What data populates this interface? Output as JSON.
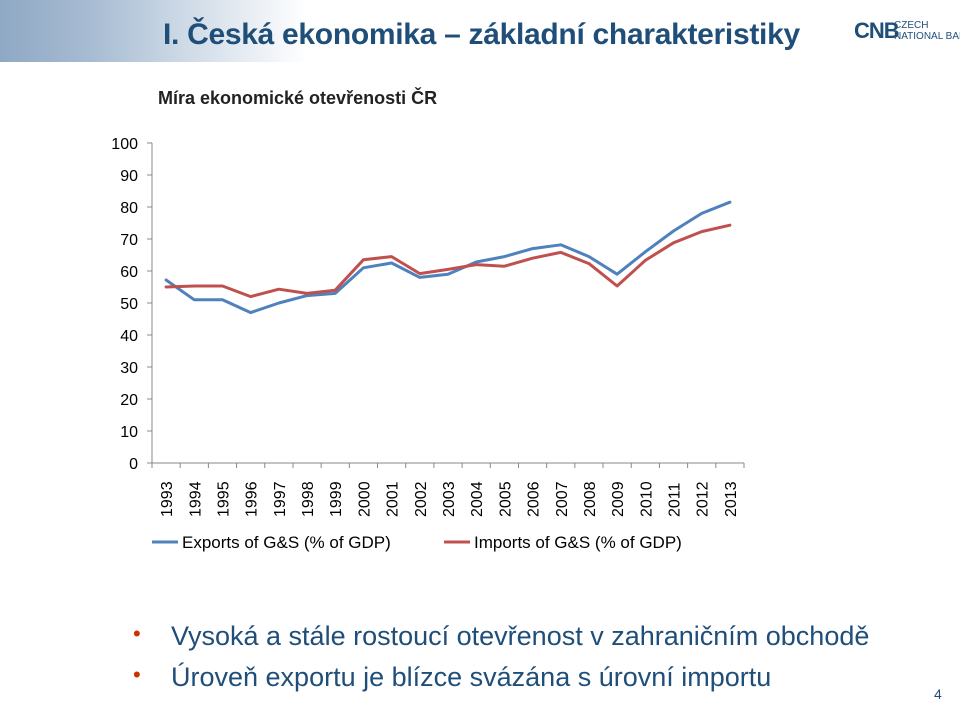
{
  "header": {
    "title": "I. Česká ekonomika – základní charakteristiky",
    "logo_mark": "CNB",
    "logo_line1": "CZECH",
    "logo_line2": "NATIONAL BANK"
  },
  "chart_data": {
    "type": "line",
    "title": "Míra ekonomické otevřenosti ČR",
    "xlabel": "",
    "ylabel": "",
    "ylim": [
      0,
      100
    ],
    "yticks": [
      0,
      10,
      20,
      30,
      40,
      50,
      60,
      70,
      80,
      90,
      100
    ],
    "grid": false,
    "legend": "bottom",
    "categories": [
      "1993",
      "1994",
      "1995",
      "1996",
      "1997",
      "1998",
      "1999",
      "2000",
      "2001",
      "2002",
      "2003",
      "2004",
      "2005",
      "2006",
      "2007",
      "2008",
      "2009",
      "2010",
      "2011",
      "2012",
      "2013"
    ],
    "series": [
      {
        "name": "Exports of G&S (% of GDP)",
        "color": "#4f81bd",
        "values": [
          57.2,
          51.0,
          51.0,
          47.0,
          50.0,
          52.3,
          53.0,
          61.0,
          62.5,
          58.0,
          59.0,
          62.8,
          64.5,
          67.0,
          68.2,
          64.5,
          59.0,
          66.0,
          72.5,
          78.0,
          81.5
        ]
      },
      {
        "name": "Imports of G&S (% of GDP)",
        "color": "#c0504d",
        "values": [
          55.0,
          55.3,
          55.3,
          52.0,
          54.3,
          53.0,
          54.0,
          63.5,
          64.5,
          59.2,
          60.5,
          62.0,
          61.5,
          64.0,
          65.8,
          62.3,
          55.3,
          63.3,
          68.8,
          72.3,
          74.3
        ]
      }
    ]
  },
  "bullets": [
    "Vysoká a stále rostoucí otevřenost v zahraničním obchodě",
    "Úroveň exportu je blízce svázána s úrovní importu"
  ],
  "page_number": "4"
}
